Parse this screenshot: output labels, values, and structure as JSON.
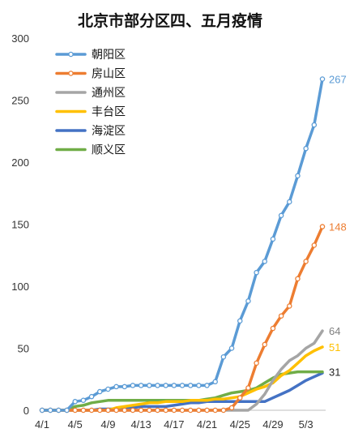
{
  "chart_data": {
    "type": "line",
    "title": "北京市部分区四、五月疫情",
    "xlabel": "",
    "ylabel": "",
    "ylim": [
      0,
      300
    ],
    "y_ticks": [
      0,
      50,
      100,
      150,
      200,
      250,
      300
    ],
    "x": [
      "4/1",
      "4/2",
      "4/3",
      "4/4",
      "4/5",
      "4/6",
      "4/7",
      "4/8",
      "4/9",
      "4/10",
      "4/11",
      "4/12",
      "4/13",
      "4/14",
      "4/15",
      "4/16",
      "4/17",
      "4/18",
      "4/19",
      "4/20",
      "4/21",
      "4/22",
      "4/23",
      "4/24",
      "4/25",
      "4/26",
      "4/27",
      "4/28",
      "4/29",
      "4/30",
      "5/1",
      "5/2",
      "5/3",
      "5/4",
      "5/5"
    ],
    "x_tick_labels": [
      "4/1",
      "4/5",
      "4/9",
      "4/13",
      "4/17",
      "4/21",
      "4/25",
      "4/29",
      "5/3"
    ],
    "grid": false,
    "legend_position": "top-left",
    "series": [
      {
        "name": "朝阳区",
        "color": "#5b9bd5",
        "markers": true,
        "end_label": "267",
        "values": [
          0,
          0,
          0,
          0,
          7,
          8,
          11,
          15,
          17,
          19,
          19,
          20,
          20,
          20,
          20,
          20,
          20,
          20,
          20,
          20,
          20,
          23,
          43,
          50,
          72,
          88,
          111,
          120,
          138,
          157,
          168,
          189,
          211,
          230,
          267
        ]
      },
      {
        "name": "房山区",
        "color": "#ed7d31",
        "markers": true,
        "end_label": "148",
        "values": [
          0,
          0,
          0,
          0,
          0,
          0,
          0,
          0,
          0,
          0,
          0,
          0,
          0,
          0,
          0,
          0,
          0,
          0,
          0,
          0,
          0,
          0,
          0,
          2,
          10,
          18,
          38,
          53,
          66,
          76,
          84,
          106,
          120,
          133,
          148
        ]
      },
      {
        "name": "通州区",
        "color": "#a5a5a5",
        "markers": false,
        "end_label": "64",
        "values": [
          0,
          0,
          0,
          0,
          0,
          0,
          0,
          0,
          0,
          0,
          0,
          0,
          0,
          0,
          0,
          0,
          0,
          0,
          0,
          0,
          0,
          0,
          0,
          0,
          0,
          0,
          5,
          13,
          24,
          33,
          40,
          44,
          50,
          54,
          64
        ]
      },
      {
        "name": "丰台区",
        "color": "#ffc000",
        "markers": false,
        "end_label": "51",
        "values": [
          0,
          0,
          0,
          0,
          0,
          0,
          0,
          0,
          0,
          2,
          3,
          4,
          5,
          6,
          6,
          7,
          7,
          7,
          8,
          8,
          8,
          9,
          9,
          10,
          11,
          14,
          17,
          19,
          22,
          28,
          32,
          38,
          44,
          48,
          51
        ]
      },
      {
        "name": "海淀区",
        "color": "#4472c4",
        "markers": false,
        "end_label": "",
        "values": [
          0,
          0,
          0,
          0,
          0,
          0,
          0,
          1,
          1,
          1,
          1,
          2,
          3,
          3,
          3,
          3,
          4,
          5,
          6,
          6,
          7,
          7,
          7,
          7,
          7,
          7,
          7,
          7,
          10,
          13,
          16,
          20,
          24,
          27,
          30
        ]
      },
      {
        "name": "顺义区",
        "color": "#70ad47",
        "markers": false,
        "end_label": "31",
        "values": [
          0,
          0,
          0,
          0,
          3,
          4,
          6,
          7,
          8,
          8,
          8,
          8,
          8,
          8,
          8,
          8,
          8,
          8,
          8,
          8,
          9,
          10,
          12,
          14,
          15,
          16,
          18,
          22,
          26,
          29,
          30,
          31,
          31,
          31,
          31
        ]
      }
    ]
  }
}
